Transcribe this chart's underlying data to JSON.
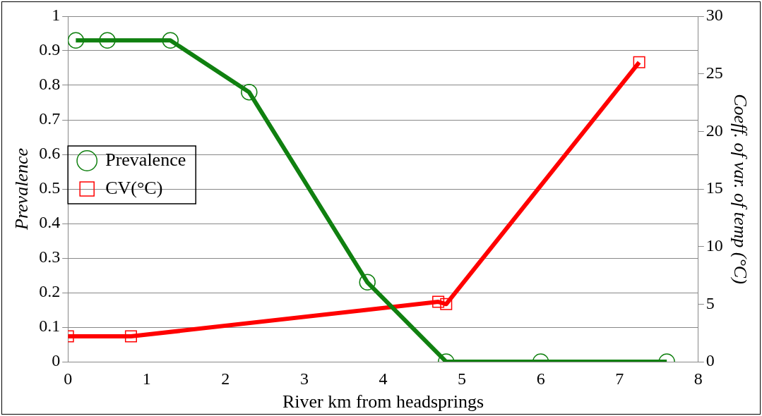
{
  "chart_data": {
    "type": "line",
    "xlabel": "River km from headsprings",
    "ylabel": "Prevalence",
    "y2label": "Coeff. of var. of temp (°C)",
    "xlim": [
      0,
      8
    ],
    "xticks": [
      0,
      1,
      2,
      3,
      4,
      5,
      6,
      7,
      8
    ],
    "ylim": [
      0,
      1
    ],
    "yticks": [
      0,
      0.1,
      0.2,
      0.3,
      0.4,
      0.5,
      0.6,
      0.7,
      0.8,
      0.9,
      1
    ],
    "y2lim": [
      0,
      30
    ],
    "y2ticks": [
      0,
      5,
      10,
      15,
      20,
      25,
      30
    ],
    "grid": "y",
    "legend": "top",
    "line_style": "solid",
    "series": [
      {
        "name": "Prevalence",
        "color": "#108010",
        "marker": "circle",
        "x": [
          0.1,
          0.5,
          1.3,
          2.3,
          3.8,
          4.8,
          6,
          7.6
        ],
        "values": [
          0.93,
          0.93,
          0.93,
          0.78,
          0.23,
          0,
          0,
          0
        ]
      },
      {
        "name": "CV(°C)",
        "color": "#ff0000",
        "marker": "square",
        "axis": "y2",
        "x": [
          0,
          0.8,
          4.7,
          4.8,
          7.25
        ],
        "values": [
          2.2,
          2.2,
          5.2,
          5,
          26
        ]
      }
    ]
  }
}
